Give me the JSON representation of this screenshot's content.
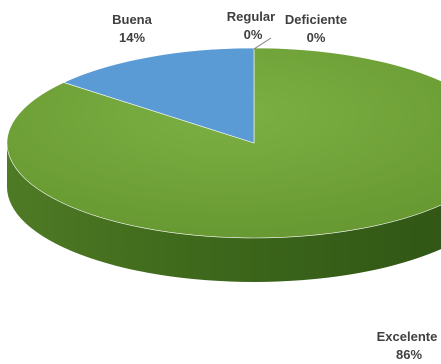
{
  "chart_data": {
    "type": "pie",
    "title": "",
    "legend": "none",
    "slices": [
      {
        "label": "Excelente",
        "value": 86,
        "value_label": "86%",
        "color": "#6e9e3a"
      },
      {
        "label": "Buena",
        "value": 14,
        "value_label": "14%",
        "color": "#5b9bd5"
      },
      {
        "label": "Regular",
        "value": 0,
        "value_label": "0%",
        "color": "#a5a5a5"
      },
      {
        "label": "Deficiente",
        "value": 0,
        "value_label": "0%",
        "color": "#ffc000"
      }
    ]
  }
}
